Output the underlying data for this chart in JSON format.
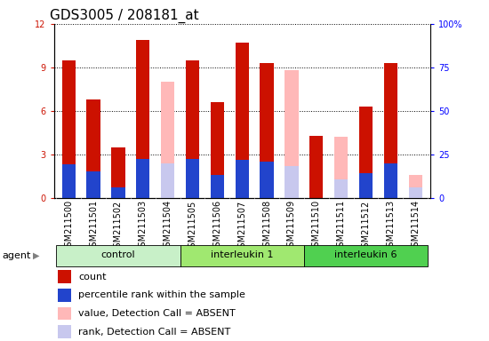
{
  "title": "GDS3005 / 208181_at",
  "samples": [
    "GSM211500",
    "GSM211501",
    "GSM211502",
    "GSM211503",
    "GSM211504",
    "GSM211505",
    "GSM211506",
    "GSM211507",
    "GSM211508",
    "GSM211509",
    "GSM211510",
    "GSM211511",
    "GSM211512",
    "GSM211513",
    "GSM211514"
  ],
  "red_values": [
    9.5,
    6.8,
    3.5,
    10.9,
    0,
    9.5,
    6.6,
    10.7,
    9.3,
    0,
    4.3,
    0,
    6.3,
    9.3,
    0
  ],
  "blue_values": [
    2.3,
    1.8,
    0.7,
    2.7,
    0,
    2.7,
    1.6,
    2.6,
    2.5,
    0,
    0,
    0,
    1.7,
    2.4,
    0
  ],
  "pink_values": [
    0,
    0,
    0,
    0,
    8.0,
    0,
    0,
    0,
    0,
    8.8,
    0,
    4.2,
    0,
    0,
    1.6
  ],
  "lavender_values": [
    0,
    0,
    0,
    0,
    2.4,
    0,
    0,
    0,
    0,
    2.2,
    0,
    1.3,
    0,
    0,
    0.7
  ],
  "groups": [
    {
      "label": "control",
      "start": 0,
      "end": 5,
      "color": "#c8f0c8"
    },
    {
      "label": "interleukin 1",
      "start": 5,
      "end": 10,
      "color": "#a0e870"
    },
    {
      "label": "interleukin 6",
      "start": 10,
      "end": 15,
      "color": "#50d050"
    }
  ],
  "ylim_left": [
    0,
    12
  ],
  "ylim_right": [
    0,
    100
  ],
  "yticks_left": [
    0,
    3,
    6,
    9,
    12
  ],
  "yticks_right": [
    0,
    25,
    50,
    75,
    100
  ],
  "bar_width": 0.55,
  "red_color": "#cc1100",
  "blue_color": "#2244cc",
  "pink_color": "#ffb8b8",
  "lavender_color": "#c8c8ee",
  "bg_color": "#ffffff",
  "tick_label_bg": "#dddddd",
  "title_fontsize": 11,
  "tick_fontsize": 7,
  "label_fontsize": 8,
  "legend_fontsize": 8
}
